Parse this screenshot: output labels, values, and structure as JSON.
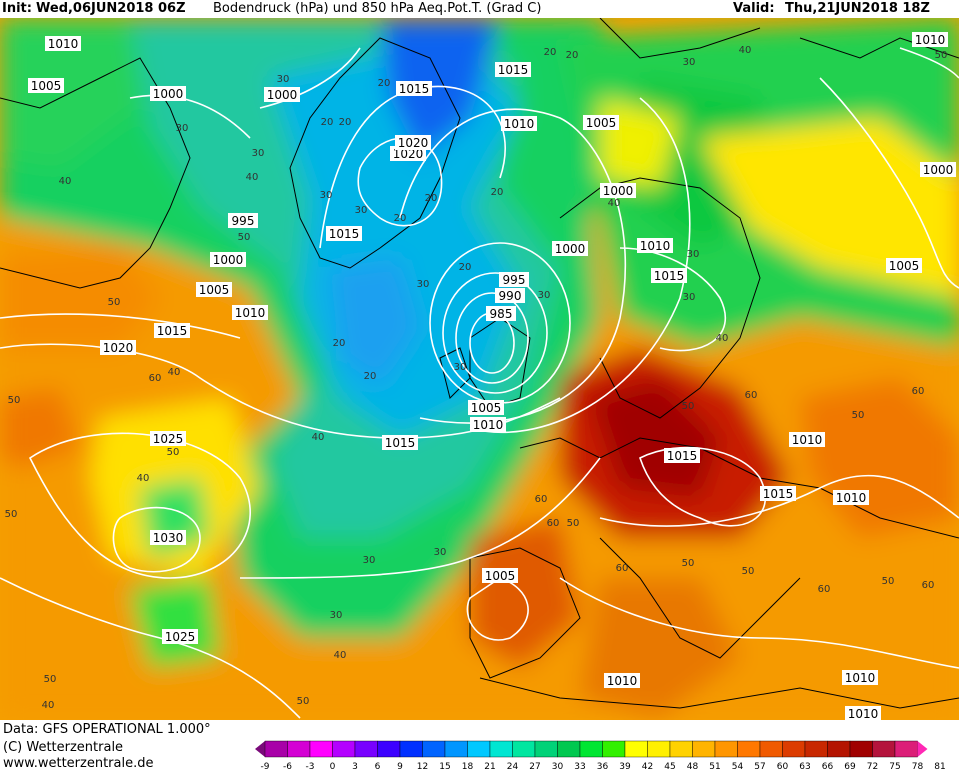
{
  "header": {
    "init_label": "Init:",
    "init_value": "Wed,06JUN2018 06Z",
    "title": "Bodendruck (hPa) und 850 hPa Aeq.Pot.T. (Grad C)",
    "valid_label": "Valid:",
    "valid_value": "Thu,21JUN2018 18Z"
  },
  "footer": {
    "data_line": "Data: GFS OPERATIONAL 1.000°",
    "copyright": "(C) Wetterzentrale",
    "website": "www.wetterzentrale.de"
  },
  "colorbar": {
    "ticks": [
      "-9",
      "-6",
      "-3",
      "0",
      "3",
      "6",
      "9",
      "12",
      "15",
      "18",
      "21",
      "24",
      "27",
      "30",
      "33",
      "36",
      "39",
      "42",
      "45",
      "48",
      "51",
      "54",
      "57",
      "60",
      "63",
      "66",
      "69",
      "72",
      "75",
      "78",
      "81"
    ],
    "colors": [
      "#7a0a7a",
      "#a800a8",
      "#d400d4",
      "#ff00ff",
      "#b400ff",
      "#7800ff",
      "#3c00ff",
      "#0030ff",
      "#0064ff",
      "#0096ff",
      "#00c8ff",
      "#00e6d2",
      "#00e6a0",
      "#00d278",
      "#00c850",
      "#00e632",
      "#32f000",
      "#ffff00",
      "#fff000",
      "#ffd200",
      "#ffb400",
      "#ff9600",
      "#ff7800",
      "#f05a00",
      "#dc3c00",
      "#c82800",
      "#b41400",
      "#a00000",
      "#b4143c",
      "#dc1e78",
      "#ff28b4"
    ]
  },
  "map": {
    "isobar_labels": [
      "1010",
      "1005",
      "1000",
      "1000",
      "1015",
      "1015",
      "1020",
      "995",
      "1015",
      "1000",
      "1005",
      "1010",
      "1015",
      "1020",
      "995",
      "990",
      "985",
      "1005",
      "1010",
      "1015",
      "1025",
      "1030",
      "1025",
      "1020",
      "1005",
      "1010",
      "1015",
      "1010",
      "1005",
      "1000",
      "1000",
      "1010",
      "1015",
      "1015",
      "1015",
      "1010",
      "1005",
      "1010",
      "1010",
      "1000"
    ],
    "theta_labels": [
      "30",
      "20",
      "20",
      "30",
      "20",
      "30",
      "20",
      "20",
      "40",
      "40",
      "50",
      "50",
      "60",
      "40",
      "50",
      "40",
      "30",
      "30",
      "40",
      "50",
      "60",
      "40",
      "50",
      "60",
      "50",
      "40",
      "30",
      "20",
      "20",
      "30",
      "30",
      "30",
      "40",
      "40",
      "50",
      "60",
      "50",
      "60",
      "60",
      "50",
      "40",
      "30",
      "20",
      "20",
      "30",
      "40",
      "50",
      "60"
    ]
  }
}
